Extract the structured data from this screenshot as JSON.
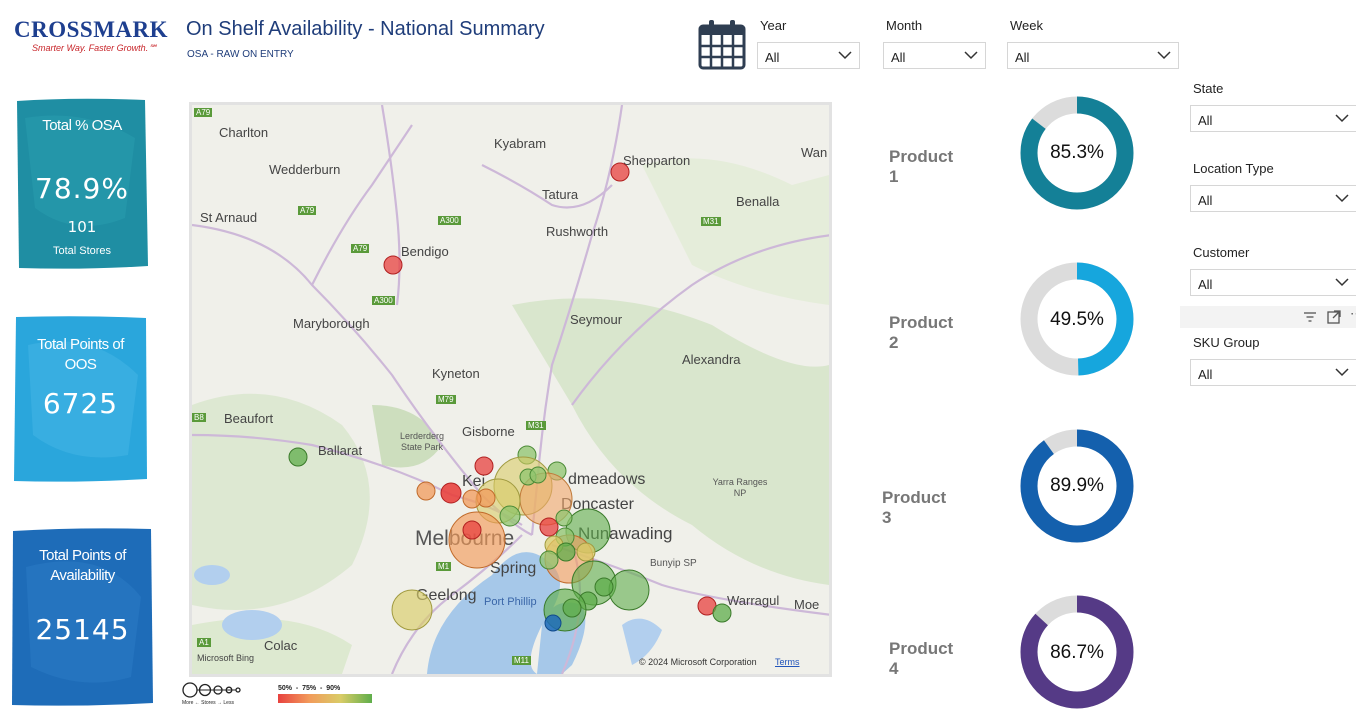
{
  "logo": {
    "brand": "CROSSMARK",
    "tagline": "Smarter Way. Faster Growth.℠"
  },
  "header": {
    "title": "On Shelf Availability - National Summary",
    "subtitle": "OSA - RAW ON ENTRY"
  },
  "filters": {
    "year": {
      "label": "Year",
      "value": "All"
    },
    "month": {
      "label": "Month",
      "value": "All"
    },
    "week": {
      "label": "Week",
      "value": "All"
    },
    "state": {
      "label": "State",
      "value": "All"
    },
    "location_type": {
      "label": "Location Type",
      "value": "All"
    },
    "customer": {
      "label": "Customer",
      "value": "All"
    },
    "sku_group": {
      "label": "SKU Group",
      "value": "All"
    }
  },
  "kpis": {
    "osa": {
      "label": "Total % OSA",
      "value": "78.9%",
      "stores_value": "101",
      "stores_label": "Total Stores",
      "color": "#1f8ea3"
    },
    "oos": {
      "label": "Total Points of OOS",
      "value": "6725",
      "color": "#2aa6dc"
    },
    "availability": {
      "label": "Total Points of Availability",
      "value": "25145",
      "color": "#1e6cb8"
    }
  },
  "map": {
    "places": [
      "Charlton",
      "Kyabram",
      "Shepparton",
      "Wan",
      "Wedderburn",
      "Tatura",
      "Benalla",
      "St Arnaud",
      "Rushworth",
      "Bendigo",
      "Seymour",
      "Maryborough",
      "Alexandra",
      "Kyneton",
      "Beaufort",
      "Gisborne",
      "Lerderderg State Park",
      "Ballarat",
      "Kei",
      "dmeadows",
      "Doncaster",
      "Yarra Ranges NP",
      "Melbourne",
      "Nunawading",
      "Spring",
      "Bunyip SP",
      "Geelong",
      "Port Phillip",
      "Warragul",
      "Moe",
      "Colac"
    ],
    "roads": [
      "A79",
      "A79",
      "A300",
      "M31",
      "A79",
      "A300",
      "M79",
      "M31",
      "B8",
      "M1",
      "A1",
      "M11"
    ],
    "copyright": "© 2024 Microsoft Corporation",
    "terms": "Terms",
    "bing": "Microsoft Bing"
  },
  "legend": {
    "size_label": "More ← Stores → Less",
    "scale_label": "50%  -  75%  -  90%"
  },
  "products": [
    {
      "name": "Product 1",
      "value": "85.3%",
      "pct": 85.3,
      "color": "#148097"
    },
    {
      "name": "Product 2",
      "value": "49.5%",
      "pct": 49.5,
      "color": "#16a6dd"
    },
    {
      "name": "Product 3",
      "value": "89.9%",
      "pct": 89.9,
      "color": "#1460ad"
    },
    {
      "name": "Product 4",
      "value": "86.7%",
      "pct": 86.7,
      "color": "#553a86"
    }
  ],
  "colors": {
    "red": "#e8423f",
    "orange": "#f29b5b",
    "yellow": "#d9cc67",
    "green": "#5fae4b"
  }
}
